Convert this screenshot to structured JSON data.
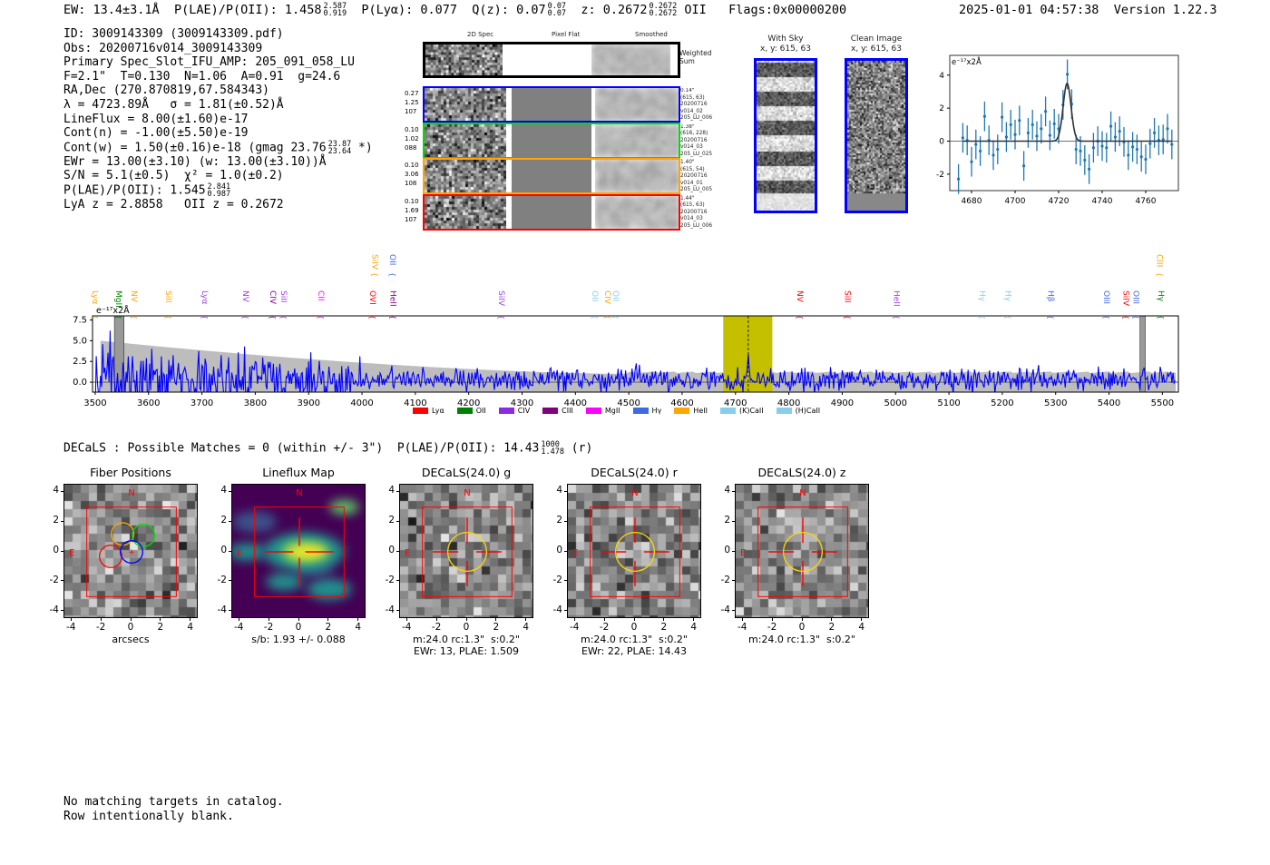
{
  "header": {
    "ew": "EW: 13.4±3.1Å",
    "plae": "P(LAE)/P(OII): 1.458",
    "plae_hi": "2.587",
    "plae_lo": "0.919",
    "plya": "P(Lyα): 0.077",
    "qz": "Q(z): 0.07",
    "qz_hi": "0.07",
    "qz_lo": "0.07",
    "z": "z: 0.2672",
    "z_hi": "0.2672",
    "z_lo": "0.2672",
    "z_line": "OII",
    "flags": "Flags:0x00000200",
    "datetime": "2025-01-01 04:57:38",
    "version": "Version 1.22.3"
  },
  "info": {
    "id": "ID: 3009143309 (3009143309.pdf)",
    "obs": "Obs: 20200716v014_3009143309",
    "primary": "Primary Spec_Slot_IFU_AMP: 205_091_058_LU",
    "params": "F=2.1\"  T=0.130  N=1.06  A=0.91  g=24.6",
    "radec": "RA,Dec (270.870819,67.584343)",
    "lambda": "λ = 4723.89Å   σ = 1.81(±0.52)Å",
    "lineflux": "LineFlux = 8.00(±1.60)e-17",
    "contn": "Cont(n) = -1.00(±5.50)e-19",
    "contw": "Cont(w) = 1.50(±0.16)e-18 (gmag 23.76",
    "contw_hi": "23.87",
    "contw_lo": "23.64",
    "contw_end": " *)",
    "ewr": "EWr = 13.00(±3.10) (w: 13.00(±3.10))Å",
    "sn": "S/N = 5.1(±0.5)  χ² = 1.0(±0.2)",
    "plae": "P(LAE)/P(OII): 1.545",
    "plae_hi": "2.841",
    "plae_lo": "0.987",
    "z": "LyA z = 2.8858   OII z = 0.2672"
  },
  "spec2d": {
    "col_headers": [
      "2D Spec",
      "Pixel Flat",
      "Smoothed"
    ],
    "weighted_label": "Weighted\nSum",
    "rows": [
      {
        "color": "#0000ff",
        "left": "0.27\n1.25\n107",
        "right": "0.14\"\n(615, 63)\n20200716\nv014_02\n205_LU_006"
      },
      {
        "color": "#00dd00",
        "left": "0.10\n1.02\n088",
        "right": "1.38\"\n(616, 228)\n20200716\nv014_03\n205_LU_025"
      },
      {
        "color": "#ffa500",
        "left": "0.10\n3.06\n108",
        "right": "1.40\"\n(615, 54)\n20200716\nv014_01\n205_LU_005"
      },
      {
        "color": "#ff0000",
        "left": "0.10\n1.69\n107",
        "right": "1.44\"\n(615, 63)\n20200716\nv014_03\n205_LU_006"
      }
    ]
  },
  "cutouts": {
    "with_sky": "With Sky",
    "with_sky_xy": "x, y: 615, 63",
    "clean": "Clean Image",
    "clean_xy": "x, y: 615, 63"
  },
  "chart_data": [
    {
      "type": "scatter",
      "title": "",
      "ylabel": "e⁻¹⁷x2Å",
      "xlim": [
        4670,
        4775
      ],
      "ylim": [
        -3,
        5.2
      ],
      "xticks": [
        "4680",
        "4700",
        "4720",
        "4740",
        "4760"
      ],
      "yticks": [
        "-2",
        "0",
        "2",
        "4"
      ],
      "x": [
        4674,
        4676,
        4678,
        4680,
        4682,
        4684,
        4686,
        4688,
        4690,
        4692,
        4694,
        4696,
        4698,
        4700,
        4702,
        4704,
        4706,
        4708,
        4710,
        4712,
        4714,
        4716,
        4718,
        4720,
        4722,
        4724,
        4726,
        4728,
        4730,
        4732,
        4734,
        4736,
        4738,
        4740,
        4742,
        4744,
        4746,
        4748,
        4750,
        4752,
        4754,
        4756,
        4758,
        4760,
        4762,
        4764,
        4766,
        4768,
        4770,
        4772
      ],
      "y": [
        -2.3,
        0.2,
        0.05,
        -1.25,
        -0.2,
        -0.6,
        1.5,
        0.05,
        -0.85,
        -0.5,
        1.45,
        0.25,
        1.0,
        0.4,
        1.25,
        -1.5,
        0.5,
        1.0,
        0.3,
        0.75,
        1.8,
        0.35,
        1.05,
        0.75,
        2.2,
        4.05,
        2.25,
        -0.5,
        -0.6,
        -1.15,
        -1.7,
        -0.4,
        0.0,
        -0.3,
        -0.4,
        0.9,
        0.25,
        0.6,
        -0.05,
        -0.85,
        -0.35,
        -0.5,
        -0.95,
        -1.1,
        -0.15,
        0.5,
        0.05,
        0.1,
        0.75,
        -0.2
      ],
      "yerr": 0.9,
      "fit": {
        "center": 4723.89,
        "sigma": 1.81,
        "amplitude": 3.5
      }
    },
    {
      "type": "line",
      "ylabel": "e⁻¹⁷x2Å",
      "xlim": [
        3495,
        5530
      ],
      "ylim": [
        -1.2,
        8.0
      ],
      "xticks": [
        "3500",
        "3600",
        "3700",
        "3800",
        "3900",
        "4000",
        "4100",
        "4200",
        "4300",
        "4400",
        "4500",
        "4600",
        "4700",
        "4800",
        "4900",
        "5000",
        "5100",
        "5200",
        "5300",
        "5400",
        "5500"
      ],
      "yticks": [
        "0.0",
        "2.5",
        "5.0",
        "7.5"
      ],
      "highlight": [
        4677,
        4769
      ],
      "line_center": 4723.89,
      "masked": [
        [
          3536,
          3554
        ],
        [
          5458,
          5468
        ]
      ],
      "legend": [
        {
          "name": "Lyα",
          "color": "#ff0000"
        },
        {
          "name": "OII",
          "color": "#008000"
        },
        {
          "name": "CIV",
          "color": "#8a2be2"
        },
        {
          "name": "CIII",
          "color": "#800080"
        },
        {
          "name": "MgII",
          "color": "#ff00ff"
        },
        {
          "name": "Hγ",
          "color": "#4169e1"
        },
        {
          "name": "HeII",
          "color": "#ffa500"
        },
        {
          "name": "(K)CaII",
          "color": "#87ceeb"
        },
        {
          "name": "(H)CaII",
          "color": "#87ceeb"
        }
      ],
      "line_labels": [
        {
          "name": "Lyα",
          "w": 3500,
          "color": "#ffa500",
          "row": 0
        },
        {
          "name": "MgII",
          "w": 3544,
          "color": "#008000",
          "row": 0
        },
        {
          "name": "NV",
          "w": 3573,
          "color": "#ffa500",
          "row": 0
        },
        {
          "name": "SiII",
          "w": 3638,
          "color": "#ffa500",
          "row": 0
        },
        {
          "name": "Lyα",
          "w": 3706,
          "color": "#a040e0",
          "row": 0
        },
        {
          "name": "NV",
          "w": 3782,
          "color": "#a040e0",
          "row": 0
        },
        {
          "name": "CIV",
          "w": 3833,
          "color": "#800080",
          "row": 0
        },
        {
          "name": "SiII",
          "w": 3854,
          "color": "#a040e0",
          "row": 0
        },
        {
          "name": "CII",
          "w": 3923,
          "color": "#ff00ff",
          "row": 0
        },
        {
          "name": "OVI",
          "w": 4020,
          "color": "#ff0000",
          "row": 0
        },
        {
          "name": "HeII",
          "w": 4059,
          "color": "#800080",
          "row": 0
        },
        {
          "name": "SiIV",
          "w": 4262,
          "color": "#a040e0",
          "row": 0
        },
        {
          "name": "OII",
          "w": 4437,
          "color": "#87ceeb",
          "row": 0
        },
        {
          "name": "CIV",
          "w": 4461,
          "color": "#ffa500",
          "row": 0
        },
        {
          "name": "OII",
          "w": 4476,
          "color": "#87ceeb",
          "row": 0
        },
        {
          "name": "NV",
          "w": 4821,
          "color": "#ff0000",
          "row": 0
        },
        {
          "name": "SiII",
          "w": 4910,
          "color": "#ff0000",
          "row": 0
        },
        {
          "name": "HeII",
          "w": 5002,
          "color": "#a040e0",
          "row": 0
        },
        {
          "name": "Hγ",
          "w": 5163,
          "color": "#87ceeb",
          "row": 0
        },
        {
          "name": "Hγ",
          "w": 5211,
          "color": "#87ceeb",
          "row": 0
        },
        {
          "name": "Hβ",
          "w": 5291,
          "color": "#4169e1",
          "row": 0
        },
        {
          "name": "OIII",
          "w": 5396,
          "color": "#4169e1",
          "row": 0
        },
        {
          "name": "SiIV",
          "w": 5432,
          "color": "#ff0000",
          "row": 0
        },
        {
          "name": "OIII",
          "w": 5451,
          "color": "#4169e1",
          "row": 0
        },
        {
          "name": "Hγ",
          "w": 5498,
          "color": "#008000",
          "row": 0
        },
        {
          "name": "SiIV",
          "w": 4025,
          "color": "#ffa500",
          "row": 1
        },
        {
          "name": "OII",
          "w": 4058,
          "color": "#4169e1",
          "row": 1
        },
        {
          "name": "CIII",
          "w": 5495,
          "color": "#ffa500",
          "row": 1
        }
      ]
    }
  ],
  "decals": {
    "summary": "DECaLS : Possible Matches = 0 (within +/- 3\")  P(LAE)/P(OII): 14.43",
    "hi": "1000",
    "lo": "1.478",
    "band": " (r)"
  },
  "thumb_ticks": [
    "-4",
    "-2",
    "0",
    "2",
    "4"
  ],
  "compass": {
    "n": "N",
    "e": "E"
  },
  "thumbs": [
    {
      "title": "Fiber Positions",
      "caption": "arcsecs",
      "kind": "fiber"
    },
    {
      "title": "Lineflux Map",
      "caption": "s/b: 1.93 +/- 0.088",
      "kind": "flux"
    },
    {
      "title": "DECaLS(24.0) g",
      "caption": "m:24.0 rc:1.3\"  s:0.2\"\nEWr: 13, PLAE: 1.509",
      "kind": "decals"
    },
    {
      "title": "DECaLS(24.0) r",
      "caption": "m:24.0 rc:1.3\"  s:0.2\"\nEWr: 22, PLAE: 14.43",
      "kind": "decals"
    },
    {
      "title": "DECaLS(24.0) z",
      "caption": "m:24.0 rc:1.3\"  s:0.2\"",
      "kind": "decals"
    }
  ],
  "footer": {
    "line1": "No matching targets in catalog.",
    "line2": "Row intentionally blank."
  }
}
